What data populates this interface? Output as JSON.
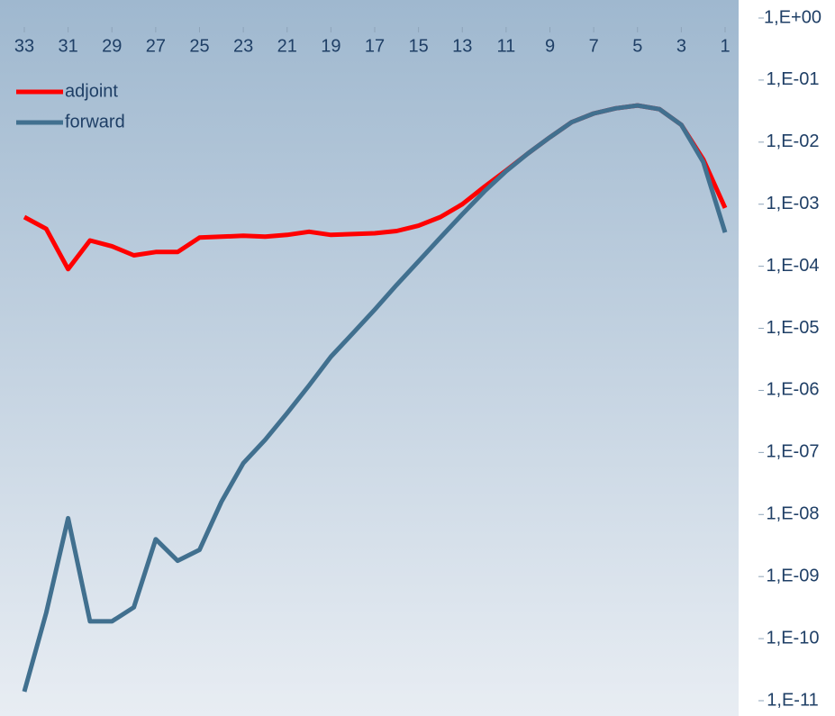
{
  "chart_data": {
    "type": "line",
    "x": [
      33,
      32,
      31,
      30,
      29,
      28,
      27,
      26,
      25,
      24,
      23,
      22,
      21,
      20,
      19,
      18,
      17,
      16,
      15,
      14,
      13,
      12,
      11,
      10,
      9,
      8,
      7,
      6,
      5,
      4,
      3,
      2,
      1
    ],
    "xlim": [
      33,
      1
    ],
    "xticks": [
      33,
      31,
      29,
      27,
      25,
      23,
      21,
      19,
      17,
      15,
      13,
      11,
      9,
      7,
      5,
      3,
      1
    ],
    "ylim": [
      1e-11,
      1
    ],
    "log_y": true,
    "y_axis_side": "right",
    "x_axis_side": "top",
    "legend": "upper left",
    "yticks": [
      {
        "value": 1,
        "label": "1,E+00"
      },
      {
        "value": 0.1,
        "label": "1,E-01"
      },
      {
        "value": 0.01,
        "label": "1,E-02"
      },
      {
        "value": 0.001,
        "label": "1,E-03"
      },
      {
        "value": 0.0001,
        "label": "1,E-04"
      },
      {
        "value": 1e-05,
        "label": "1,E-05"
      },
      {
        "value": 1e-06,
        "label": "1,E-06"
      },
      {
        "value": 1e-07,
        "label": "1,E-07"
      },
      {
        "value": 1e-08,
        "label": "1,E-08"
      },
      {
        "value": 1e-09,
        "label": "1,E-09"
      },
      {
        "value": 1e-10,
        "label": "1,E-10"
      },
      {
        "value": 1e-11,
        "label": "1,E-11"
      }
    ],
    "series": [
      {
        "name": "adjoint",
        "color": "#ff0000",
        "values": [
          0.00062,
          0.0004,
          9e-05,
          0.00026,
          0.00021,
          0.00015,
          0.00017,
          0.00017,
          0.00029,
          0.0003,
          0.00031,
          0.0003,
          0.00032,
          0.00036,
          0.00032,
          0.00033,
          0.00034,
          0.00037,
          0.00045,
          0.00062,
          0.001,
          0.0019,
          0.0035,
          0.0066,
          0.012,
          0.021,
          0.029,
          0.035,
          0.039,
          0.034,
          0.019,
          0.0053,
          0.00087
        ]
      },
      {
        "name": "forward",
        "color": "#41708f",
        "values": [
          1.4e-11,
          2.6e-10,
          8.7e-09,
          1.9e-10,
          1.9e-10,
          3.2e-10,
          4e-09,
          1.8e-09,
          2.7e-09,
          1.6e-08,
          6.7e-08,
          1.6e-07,
          4.3e-07,
          1.2e-06,
          3.5e-06,
          8.3e-06,
          2e-05,
          5e-05,
          0.00012,
          0.00029,
          0.00069,
          0.0016,
          0.0034,
          0.0066,
          0.012,
          0.021,
          0.029,
          0.035,
          0.039,
          0.034,
          0.019,
          0.0048,
          0.00035
        ]
      }
    ]
  }
}
